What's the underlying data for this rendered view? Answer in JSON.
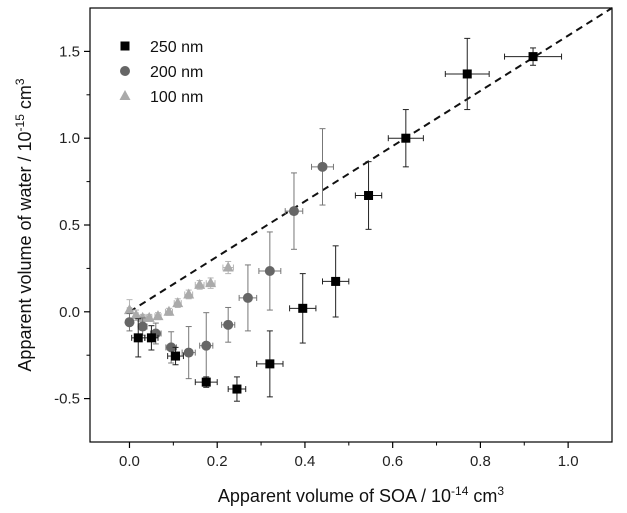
{
  "chart_data": {
    "type": "scatter",
    "title": "",
    "xlabel": {
      "main": "Apparent volume of SOA / 10",
      "exp": "-14",
      "unit": " cm",
      "unit_exp": "3"
    },
    "ylabel": {
      "main": "Apparent volume of water / 10",
      "exp": "-15",
      "unit": " cm",
      "unit_exp": "3"
    },
    "xlim": [
      -0.09,
      1.1
    ],
    "ylim": [
      -0.75,
      1.75
    ],
    "x_ticks": [
      0.0,
      0.2,
      0.4,
      0.6,
      0.8,
      1.0
    ],
    "x_tick_labels": [
      "0.0",
      "0.2",
      "0.4",
      "0.6",
      "0.8",
      "1.0"
    ],
    "y_ticks": [
      -0.5,
      0.0,
      0.5,
      1.0,
      1.5
    ],
    "y_tick_labels": [
      "-0.5",
      "0.0",
      "0.5",
      "1.0",
      "1.5"
    ],
    "grid": false,
    "legend_position": "top-left",
    "fit_line": {
      "style": "dashed",
      "color": "#111111",
      "x": [
        0.0,
        1.1
      ],
      "y": [
        0.0,
        1.75
      ]
    },
    "series": [
      {
        "name": "250 nm",
        "marker": "square",
        "color": "#000000",
        "points": [
          {
            "x": 0.02,
            "y": -0.15,
            "xerr": 0.015,
            "yerr": 0.11
          },
          {
            "x": 0.05,
            "y": -0.15,
            "xerr": 0.015,
            "yerr": 0.07
          },
          {
            "x": 0.105,
            "y": -0.255,
            "xerr": 0.018,
            "yerr": 0.05
          },
          {
            "x": 0.175,
            "y": -0.405,
            "xerr": 0.025,
            "yerr": 0.03
          },
          {
            "x": 0.245,
            "y": -0.445,
            "xerr": 0.02,
            "yerr": 0.07
          },
          {
            "x": 0.32,
            "y": -0.3,
            "xerr": 0.03,
            "yerr": 0.19
          },
          {
            "x": 0.395,
            "y": 0.02,
            "xerr": 0.03,
            "yerr": 0.2
          },
          {
            "x": 0.47,
            "y": 0.175,
            "xerr": 0.03,
            "yerr": 0.205
          },
          {
            "x": 0.545,
            "y": 0.67,
            "xerr": 0.03,
            "yerr": 0.195
          },
          {
            "x": 0.63,
            "y": 1.0,
            "xerr": 0.04,
            "yerr": 0.165
          },
          {
            "x": 0.77,
            "y": 1.37,
            "xerr": 0.05,
            "yerr": 0.205
          },
          {
            "x": 0.92,
            "y": 1.47,
            "xerr": 0.065,
            "yerr": 0.05
          }
        ]
      },
      {
        "name": "200 nm",
        "marker": "circle",
        "color": "#666666",
        "points": [
          {
            "x": 0.0,
            "y": -0.06,
            "xerr": 0.008,
            "yerr": 0.05
          },
          {
            "x": 0.03,
            "y": -0.085,
            "xerr": 0.01,
            "yerr": 0.05
          },
          {
            "x": 0.06,
            "y": -0.125,
            "xerr": 0.012,
            "yerr": 0.06
          },
          {
            "x": 0.095,
            "y": -0.205,
            "xerr": 0.012,
            "yerr": 0.09
          },
          {
            "x": 0.135,
            "y": -0.235,
            "xerr": 0.015,
            "yerr": 0.15
          },
          {
            "x": 0.175,
            "y": -0.195,
            "xerr": 0.015,
            "yerr": 0.19
          },
          {
            "x": 0.225,
            "y": -0.075,
            "xerr": 0.015,
            "yerr": 0.1
          },
          {
            "x": 0.27,
            "y": 0.08,
            "xerr": 0.02,
            "yerr": 0.19
          },
          {
            "x": 0.32,
            "y": 0.235,
            "xerr": 0.025,
            "yerr": 0.225
          },
          {
            "x": 0.375,
            "y": 0.58,
            "xerr": 0.02,
            "yerr": 0.22
          },
          {
            "x": 0.44,
            "y": 0.835,
            "xerr": 0.025,
            "yerr": 0.22
          }
        ]
      },
      {
        "name": "100 nm",
        "marker": "triangle",
        "color": "#aaaaaa",
        "points": [
          {
            "x": 0.0,
            "y": 0.01,
            "xerr": 0.005,
            "yerr": 0.06
          },
          {
            "x": 0.015,
            "y": -0.02,
            "xerr": 0.005,
            "yerr": 0.03
          },
          {
            "x": 0.03,
            "y": -0.035,
            "xerr": 0.006,
            "yerr": 0.02
          },
          {
            "x": 0.045,
            "y": -0.035,
            "xerr": 0.006,
            "yerr": 0.02
          },
          {
            "x": 0.065,
            "y": -0.025,
            "xerr": 0.007,
            "yerr": 0.02
          },
          {
            "x": 0.09,
            "y": 0.0,
            "xerr": 0.008,
            "yerr": 0.02
          },
          {
            "x": 0.11,
            "y": 0.05,
            "xerr": 0.008,
            "yerr": 0.025
          },
          {
            "x": 0.135,
            "y": 0.1,
            "xerr": 0.009,
            "yerr": 0.025
          },
          {
            "x": 0.16,
            "y": 0.155,
            "xerr": 0.01,
            "yerr": 0.025
          },
          {
            "x": 0.185,
            "y": 0.165,
            "xerr": 0.01,
            "yerr": 0.03
          },
          {
            "x": 0.225,
            "y": 0.255,
            "xerr": 0.012,
            "yerr": 0.035
          }
        ]
      }
    ]
  }
}
